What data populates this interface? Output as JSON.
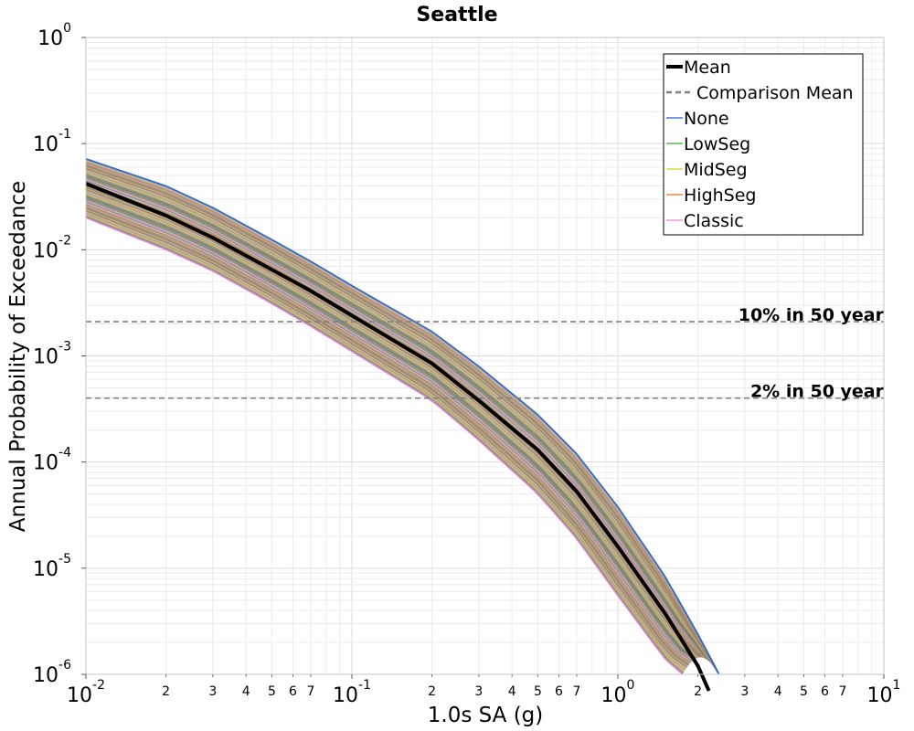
{
  "chart_data": {
    "type": "line",
    "title": "Seattle",
    "xlabel": "1.0s SA (g)",
    "ylabel": "Annual Probability of Exceedance",
    "x_scale": "log",
    "y_scale": "log",
    "xlim": [
      0.01,
      10
    ],
    "ylim": [
      1e-06,
      1
    ],
    "grid": true,
    "legend_position": "top-right",
    "x_major_ticks": [
      {
        "base": "10",
        "exp": "-2"
      },
      {
        "base": "10",
        "exp": "-1"
      },
      {
        "base": "10",
        "exp": "0"
      },
      {
        "base": "10",
        "exp": "1"
      }
    ],
    "y_major_ticks": [
      {
        "base": "10",
        "exp": "-6"
      },
      {
        "base": "10",
        "exp": "-5"
      },
      {
        "base": "10",
        "exp": "-4"
      },
      {
        "base": "10",
        "exp": "-3"
      },
      {
        "base": "10",
        "exp": "-2"
      },
      {
        "base": "10",
        "exp": "-1"
      },
      {
        "base": "10",
        "exp": "0"
      }
    ],
    "x_minor_tick_labels": [
      "2",
      "3",
      "4",
      "5",
      "6",
      "7"
    ],
    "reference_lines": [
      {
        "label": "10% in 50 year",
        "y": 0.0021
      },
      {
        "label": "2% in 50 year",
        "y": 0.0004
      }
    ],
    "legend": [
      {
        "name": "Mean",
        "color": "#000000",
        "style": "solid-thick"
      },
      {
        "name": "Comparison Mean",
        "color": "#808080",
        "style": "dashed"
      },
      {
        "name": "None",
        "color": "#1f5fd6",
        "style": "solid"
      },
      {
        "name": "LowSeg",
        "color": "#3aa835",
        "style": "solid"
      },
      {
        "name": "MidSeg",
        "color": "#e6c619",
        "style": "solid"
      },
      {
        "name": "HighSeg",
        "color": "#e8702a",
        "style": "solid"
      },
      {
        "name": "Classic",
        "color": "#f07ff0",
        "style": "solid"
      }
    ],
    "mean_series": {
      "name": "Mean",
      "x": [
        0.01,
        0.02,
        0.03,
        0.05,
        0.07,
        0.1,
        0.2,
        0.3,
        0.5,
        0.7,
        1.0,
        1.5,
        2.0,
        2.2
      ],
      "y": [
        0.042,
        0.021,
        0.013,
        0.0065,
        0.0041,
        0.0024,
        0.00085,
        0.00038,
        0.00013,
        5.3e-05,
        1.6e-05,
        3.8e-06,
        1.2e-06,
        7e-07
      ]
    },
    "branch_envelope": {
      "upper": {
        "x": [
          0.01,
          0.02,
          0.03,
          0.05,
          0.07,
          0.1,
          0.2,
          0.3,
          0.5,
          0.7,
          1.0,
          1.5,
          2.0,
          2.4
        ],
        "y": [
          0.072,
          0.04,
          0.025,
          0.0125,
          0.0078,
          0.0046,
          0.0017,
          0.0008,
          0.00028,
          0.00012,
          3.8e-05,
          8.5e-06,
          2.4e-06,
          1e-06
        ]
      },
      "lower": {
        "x": [
          0.01,
          0.02,
          0.03,
          0.05,
          0.07,
          0.1,
          0.2,
          0.3,
          0.5,
          0.7,
          1.0,
          1.5,
          1.75
        ],
        "y": [
          0.02,
          0.01,
          0.0063,
          0.0031,
          0.0019,
          0.0011,
          0.00038,
          0.00016,
          5e-05,
          1.9e-05,
          5.5e-06,
          1.4e-06,
          1e-06
        ]
      }
    },
    "series_colors": {
      "None": "#1f5fd6",
      "LowSeg": "#3aa835",
      "MidSeg": "#e6c619",
      "HighSeg": "#e8702a",
      "Classic": "#f07ff0",
      "Mean": "#000000",
      "Comparison": "#808080"
    }
  }
}
